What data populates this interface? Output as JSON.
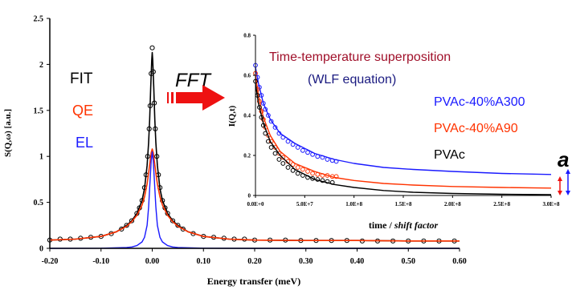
{
  "colors": {
    "fit": "#000000",
    "qe": "#ff3300",
    "el": "#1a1aff",
    "title": "#a0102a",
    "arrow": "#ee1111",
    "pvac_a300": "#1a1aff",
    "pvac_a90": "#ff3300",
    "pvac": "#000000"
  },
  "main_legend": {
    "fit": "FIT",
    "qe": "QE",
    "el": "EL"
  },
  "fft_label": "FFT",
  "inset_title": {
    "line1": "Time-temperature superposition",
    "line2": "(WLF equation)"
  },
  "inset_legend": {
    "a300": "PVAc-40%A300",
    "a90": "PVAc-40%A90",
    "pvac": "PVAc"
  },
  "side_label": "a",
  "chart_data": [
    {
      "type": "line",
      "xlabel": "Energy transfer (meV)",
      "ylabel": "S(Q,ω) [a.u.]",
      "xlim": [
        -0.2,
        0.6
      ],
      "ylim": [
        0,
        2.5
      ],
      "x_ticks": [
        -0.2,
        -0.1,
        0.0,
        0.1,
        0.2,
        0.3,
        0.4,
        0.5,
        0.6
      ],
      "x_tick_labels": [
        "-0.20",
        "-0.10",
        "0.00",
        "0.10",
        "0.20",
        "0.30",
        "0.40",
        "0.50",
        "0.60"
      ],
      "y_ticks": [
        0,
        0.5,
        1,
        1.5,
        2,
        2.5
      ],
      "y_tick_labels": [
        "0",
        "0.5",
        "1",
        "1.5",
        "2",
        "2.5"
      ],
      "grid": false,
      "series": [
        {
          "name": "FIT",
          "line": true,
          "x": [
            -0.2,
            -0.15,
            -0.1,
            -0.07,
            -0.05,
            -0.04,
            -0.03,
            -0.02,
            -0.015,
            -0.01,
            -0.007,
            -0.005,
            -0.003,
            -0.001,
            0.0,
            0.001,
            0.003,
            0.005,
            0.007,
            0.01,
            0.015,
            0.02,
            0.03,
            0.04,
            0.05,
            0.07,
            0.1,
            0.15,
            0.2,
            0.3,
            0.4,
            0.5,
            0.6
          ],
          "y": [
            0.09,
            0.1,
            0.13,
            0.18,
            0.25,
            0.3,
            0.38,
            0.52,
            0.65,
            0.9,
            1.15,
            1.4,
            1.75,
            2.05,
            2.13,
            2.05,
            1.75,
            1.4,
            1.15,
            0.9,
            0.65,
            0.52,
            0.38,
            0.3,
            0.25,
            0.18,
            0.13,
            0.1,
            0.09,
            0.085,
            0.085,
            0.08,
            0.08
          ]
        },
        {
          "name": "Data",
          "line": false,
          "x": [
            -0.2,
            -0.18,
            -0.16,
            -0.14,
            -0.12,
            -0.1,
            -0.08,
            -0.06,
            -0.05,
            -0.04,
            -0.03,
            -0.025,
            -0.02,
            -0.015,
            -0.012,
            -0.009,
            -0.006,
            -0.004,
            -0.002,
            0.0,
            0.002,
            0.004,
            0.006,
            0.009,
            0.012,
            0.015,
            0.02,
            0.025,
            0.03,
            0.04,
            0.05,
            0.06,
            0.08,
            0.1,
            0.12,
            0.14,
            0.16,
            0.18,
            0.2,
            0.23,
            0.26,
            0.29,
            0.32,
            0.35,
            0.38,
            0.41,
            0.44,
            0.47,
            0.5,
            0.53,
            0.56,
            0.59
          ],
          "y": [
            0.09,
            0.1,
            0.1,
            0.11,
            0.12,
            0.13,
            0.16,
            0.21,
            0.25,
            0.3,
            0.38,
            0.44,
            0.52,
            0.66,
            0.8,
            1.0,
            1.3,
            1.55,
            1.9,
            2.18,
            1.92,
            1.58,
            1.3,
            1.0,
            0.8,
            0.66,
            0.52,
            0.44,
            0.38,
            0.3,
            0.25,
            0.21,
            0.16,
            0.13,
            0.12,
            0.11,
            0.1,
            0.1,
            0.09,
            0.09,
            0.09,
            0.085,
            0.085,
            0.085,
            0.085,
            0.08,
            0.08,
            0.08,
            0.08,
            0.08,
            0.08,
            0.08
          ]
        },
        {
          "name": "QE",
          "line": true,
          "x": [
            -0.2,
            -0.15,
            -0.1,
            -0.07,
            -0.05,
            -0.04,
            -0.03,
            -0.02,
            -0.015,
            -0.01,
            -0.007,
            -0.004,
            -0.002,
            0.0,
            0.002,
            0.004,
            0.007,
            0.01,
            0.015,
            0.02,
            0.03,
            0.04,
            0.05,
            0.07,
            0.1,
            0.15,
            0.2,
            0.3,
            0.4,
            0.5,
            0.6
          ],
          "y": [
            0.09,
            0.1,
            0.13,
            0.18,
            0.24,
            0.29,
            0.36,
            0.47,
            0.56,
            0.7,
            0.82,
            0.95,
            1.04,
            1.08,
            1.04,
            0.95,
            0.82,
            0.7,
            0.56,
            0.47,
            0.36,
            0.29,
            0.24,
            0.18,
            0.13,
            0.1,
            0.09,
            0.085,
            0.085,
            0.08,
            0.08
          ]
        },
        {
          "name": "EL",
          "line": true,
          "x": [
            -0.2,
            -0.1,
            -0.05,
            -0.04,
            -0.03,
            -0.02,
            -0.015,
            -0.01,
            -0.007,
            -0.004,
            -0.002,
            0.0,
            0.002,
            0.004,
            0.007,
            0.01,
            0.015,
            0.02,
            0.03,
            0.04,
            0.05,
            0.1,
            0.2,
            0.6
          ],
          "y": [
            0.0,
            0.002,
            0.01,
            0.015,
            0.03,
            0.07,
            0.12,
            0.25,
            0.45,
            0.75,
            0.95,
            1.05,
            0.95,
            0.75,
            0.45,
            0.25,
            0.12,
            0.07,
            0.03,
            0.015,
            0.01,
            0.002,
            0.0,
            0.0
          ]
        }
      ]
    },
    {
      "type": "line",
      "xlabel": "time / shift factor",
      "ylabel": "I(Q,t)",
      "xlim": [
        0,
        300000000
      ],
      "ylim": [
        0,
        0.8
      ],
      "x_ticks": [
        0,
        50000000,
        100000000,
        150000000,
        200000000,
        250000000,
        300000000
      ],
      "x_tick_labels": [
        "0.0E+0",
        "5.0E+7",
        "1.0E+8",
        "1.5E+8",
        "2.0E+8",
        "2.5E+8",
        "3.0E+8"
      ],
      "y_ticks": [
        0,
        0.2,
        0.4,
        0.6,
        0.8
      ],
      "y_tick_labels": [
        "0",
        "0.2",
        "0.4",
        "0.6",
        "0.8"
      ],
      "grid": false,
      "series": [
        {
          "name": "PVAc-40%A300",
          "line": true,
          "x": [
            0,
            3000000,
            8000000,
            15000000,
            25000000,
            40000000,
            60000000,
            80000000,
            100000000,
            130000000,
            160000000,
            200000000,
            250000000,
            300000000
          ],
          "y": [
            0.64,
            0.56,
            0.46,
            0.38,
            0.31,
            0.26,
            0.21,
            0.18,
            0.16,
            0.14,
            0.13,
            0.12,
            0.11,
            0.105
          ]
        },
        {
          "name": "PVAc-40%A300 data",
          "line": false,
          "x": [
            0,
            2000000,
            4000000,
            6000000,
            8000000,
            10000000,
            13000000,
            16000000,
            20000000,
            24000000,
            28000000,
            33000000,
            38000000,
            43000000,
            48000000,
            53000000,
            58000000,
            63000000,
            68000000,
            73000000,
            78000000,
            82000000
          ],
          "y": [
            0.65,
            0.59,
            0.54,
            0.5,
            0.46,
            0.43,
            0.4,
            0.37,
            0.34,
            0.31,
            0.29,
            0.27,
            0.255,
            0.24,
            0.225,
            0.215,
            0.205,
            0.195,
            0.19,
            0.18,
            0.175,
            0.17
          ]
        },
        {
          "name": "PVAc-40%A90",
          "line": true,
          "x": [
            0,
            3000000,
            8000000,
            15000000,
            25000000,
            40000000,
            60000000,
            80000000,
            100000000,
            130000000,
            160000000,
            200000000,
            250000000,
            300000000
          ],
          "y": [
            0.6,
            0.5,
            0.39,
            0.3,
            0.22,
            0.16,
            0.12,
            0.09,
            0.075,
            0.06,
            0.052,
            0.045,
            0.04,
            0.037
          ]
        },
        {
          "name": "PVAc-40%A90 data",
          "line": false,
          "x": [
            0,
            2000000,
            4000000,
            6000000,
            8000000,
            10000000,
            13000000,
            16000000,
            20000000,
            24000000,
            28000000,
            33000000,
            38000000,
            43000000,
            48000000,
            53000000,
            58000000,
            63000000,
            68000000,
            73000000,
            78000000,
            82000000
          ],
          "y": [
            0.61,
            0.53,
            0.47,
            0.42,
            0.38,
            0.34,
            0.3,
            0.27,
            0.24,
            0.21,
            0.19,
            0.17,
            0.155,
            0.14,
            0.13,
            0.12,
            0.11,
            0.105,
            0.1,
            0.1,
            0.095,
            0.095
          ]
        },
        {
          "name": "PVAc",
          "line": true,
          "x": [
            0,
            3000000,
            8000000,
            15000000,
            25000000,
            40000000,
            60000000,
            80000000,
            100000000,
            130000000,
            160000000,
            200000000,
            250000000,
            300000000
          ],
          "y": [
            0.56,
            0.46,
            0.36,
            0.27,
            0.2,
            0.13,
            0.08,
            0.055,
            0.04,
            0.025,
            0.016,
            0.01,
            0.006,
            0.004
          ]
        },
        {
          "name": "PVAc data",
          "line": false,
          "x": [
            0,
            2000000,
            4000000,
            6000000,
            8000000,
            10000000,
            13000000,
            16000000,
            20000000,
            24000000,
            28000000,
            33000000,
            38000000,
            43000000,
            48000000,
            53000000,
            58000000,
            63000000,
            68000000,
            73000000,
            78000000
          ],
          "y": [
            0.57,
            0.5,
            0.44,
            0.39,
            0.35,
            0.31,
            0.27,
            0.24,
            0.21,
            0.18,
            0.16,
            0.14,
            0.125,
            0.11,
            0.1,
            0.09,
            0.085,
            0.08,
            0.075,
            0.07,
            0.065
          ]
        }
      ]
    }
  ]
}
